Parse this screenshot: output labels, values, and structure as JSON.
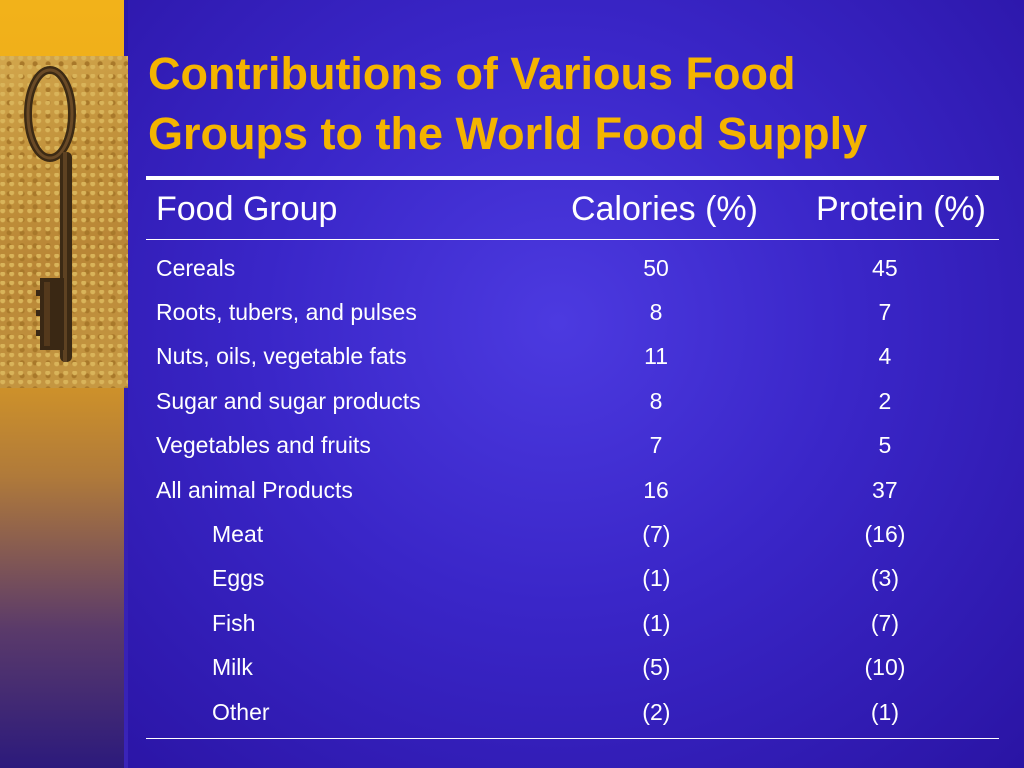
{
  "slide": {
    "title_line1": "Contributions of Various Food",
    "title_line2": "Groups to the World Food Supply",
    "colors": {
      "title": "#f4b400",
      "background": "#3a26c8",
      "text": "#ffffff",
      "accent_strip": "#f2b21a"
    }
  },
  "table": {
    "headers": {
      "group": "Food Group",
      "calories": "Calories (%)",
      "protein": "Protein (%)"
    },
    "rows": [
      {
        "group": "Cereals",
        "calories": "50",
        "protein": "45"
      },
      {
        "group": "Roots, tubers, and pulses",
        "calories": "8",
        "protein": "7"
      },
      {
        "group": "Nuts, oils, vegetable fats",
        "calories": "11",
        "protein": "4"
      },
      {
        "group": "Sugar and sugar products",
        "calories": "8",
        "protein": "2"
      },
      {
        "group": "Vegetables and fruits",
        "calories": "7",
        "protein": "5"
      },
      {
        "group": "All animal Products",
        "calories": "16",
        "protein": "37"
      },
      {
        "group": "Meat",
        "calories": "(7)",
        "protein": "(16)"
      },
      {
        "group": "Eggs",
        "calories": "(1)",
        "protein": "(3)"
      },
      {
        "group": "Fish",
        "calories": "(1)",
        "protein": "(7)"
      },
      {
        "group": "Milk",
        "calories": "(5)",
        "protein": "(10)"
      },
      {
        "group": "Other",
        "calories": "(2)",
        "protein": "(1)"
      }
    ]
  },
  "image": {
    "icon": "old-key-icon"
  }
}
